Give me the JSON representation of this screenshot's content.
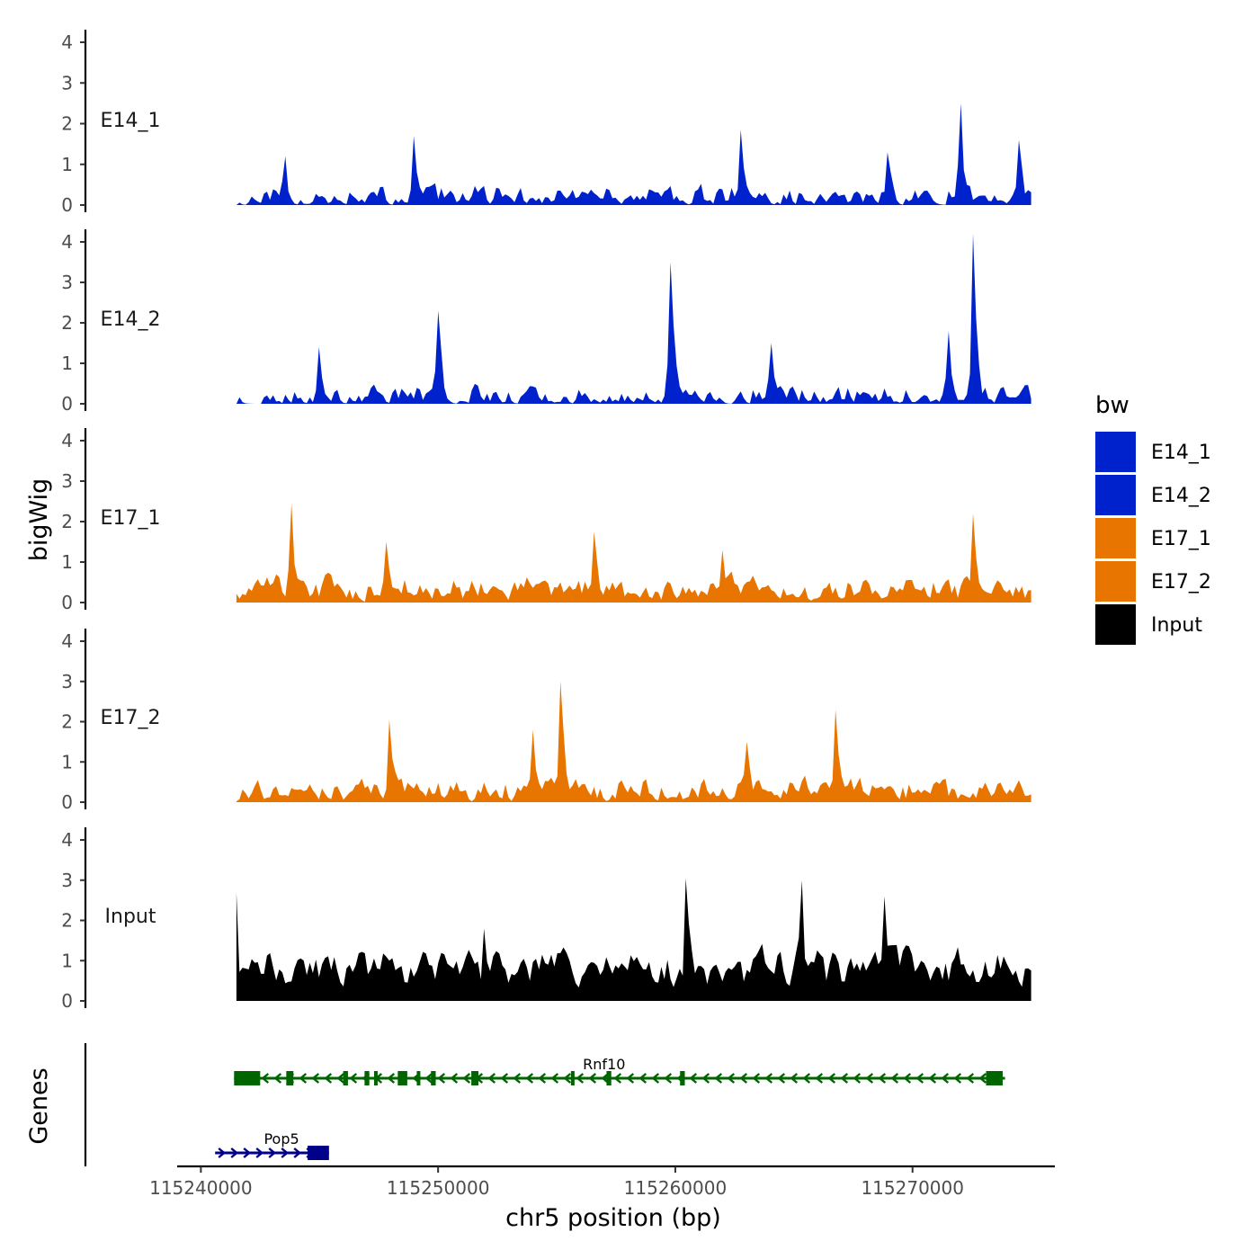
{
  "chart_data": {
    "type": "area",
    "x_axis": {
      "title": "chr5 position (bp)",
      "range": [
        115239000,
        115276000
      ],
      "ticks": [
        115240000,
        115250000,
        115260000,
        115270000
      ],
      "tick_labels": [
        "115240000",
        "115250000",
        "115260000",
        "115270000"
      ]
    },
    "y_axis": {
      "title": "bigWig",
      "range": [
        0,
        4.3
      ],
      "ticks": [
        0,
        1,
        2,
        3,
        4
      ],
      "tick_labels": [
        "0",
        "1",
        "2",
        "3",
        "4"
      ]
    },
    "genes_title": "Genes",
    "legend": {
      "title": "bw",
      "items": [
        {
          "label": "E14_1",
          "color": "#0022cc"
        },
        {
          "label": "E14_2",
          "color": "#0022cc"
        },
        {
          "label": "E17_1",
          "color": "#e87500"
        },
        {
          "label": "E17_2",
          "color": "#e87500"
        },
        {
          "label": "Input",
          "color": "#000000"
        }
      ]
    },
    "signal_range": [
      115241500,
      115275000
    ],
    "tracks": [
      {
        "name": "E14_1",
        "color": "#0022cc",
        "seed": 11,
        "scale": 0.55,
        "gap": 0.3,
        "peaks": [
          [
            115249000,
            1.7
          ],
          [
            115262800,
            1.85
          ],
          [
            115272000,
            2.5
          ],
          [
            115243500,
            1.2
          ],
          [
            115269000,
            1.3
          ],
          [
            115274500,
            1.6
          ]
        ]
      },
      {
        "name": "E14_2",
        "color": "#0022cc",
        "seed": 23,
        "scale": 0.55,
        "gap": 0.3,
        "peaks": [
          [
            115259800,
            3.5
          ],
          [
            115272600,
            4.2
          ],
          [
            115250000,
            2.3
          ],
          [
            115264000,
            1.5
          ],
          [
            115271500,
            1.8
          ],
          [
            115245000,
            1.4
          ]
        ]
      },
      {
        "name": "E17_1",
        "color": "#e87500",
        "seed": 37,
        "scale": 0.75,
        "gap": 0.06,
        "peaks": [
          [
            115243800,
            2.45
          ],
          [
            115256600,
            1.75
          ],
          [
            115272600,
            2.2
          ],
          [
            115247800,
            1.5
          ],
          [
            115262000,
            1.3
          ]
        ]
      },
      {
        "name": "E17_2",
        "color": "#e87500",
        "seed": 53,
        "scale": 0.75,
        "gap": 0.08,
        "peaks": [
          [
            115255200,
            3.0
          ],
          [
            115266800,
            2.3
          ],
          [
            115254000,
            1.8
          ],
          [
            115248000,
            2.05
          ],
          [
            115263000,
            1.5
          ]
        ]
      },
      {
        "name": "Input",
        "color": "#000000",
        "seed": 71,
        "scale": 1.35,
        "gap": 0.0,
        "peaks": [
          [
            115260500,
            3.05
          ],
          [
            115265300,
            3.0
          ],
          [
            115240800,
            2.7
          ],
          [
            115268800,
            2.6
          ],
          [
            115252000,
            1.8
          ]
        ]
      }
    ],
    "genes": [
      {
        "name": "Pop5",
        "strand": "+",
        "color": "#00008b",
        "start": 115240600,
        "end": 115245400,
        "exons": [
          [
            115244500,
            115245400
          ]
        ]
      },
      {
        "name": "Rnf10",
        "strand": "-",
        "color": "#006400",
        "start": 115241400,
        "end": 115273900,
        "exons": [
          [
            115241400,
            115241900
          ],
          [
            115241900,
            115242500
          ],
          [
            115243600,
            115243900
          ],
          [
            115246000,
            115246200
          ],
          [
            115246900,
            115247100
          ],
          [
            115247300,
            115247400
          ],
          [
            115248300,
            115248700
          ],
          [
            115249100,
            115249200
          ],
          [
            115249700,
            115249900
          ],
          [
            115251400,
            115251700
          ],
          [
            115255600,
            115255700
          ],
          [
            115257100,
            115257300
          ],
          [
            115260200,
            115260400
          ],
          [
            115273100,
            115273800
          ]
        ]
      }
    ]
  }
}
